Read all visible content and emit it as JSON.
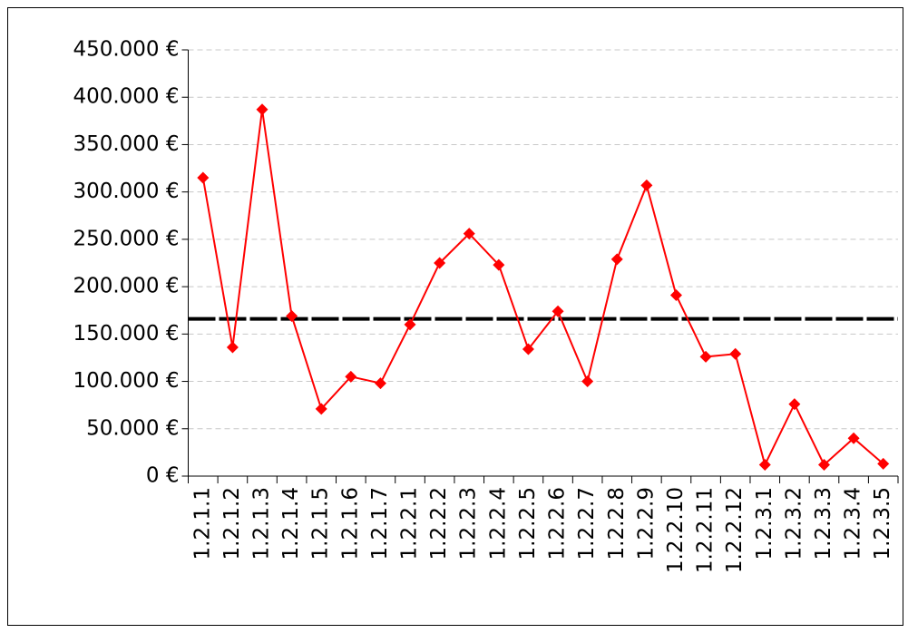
{
  "chart_data": {
    "type": "line",
    "categories": [
      "1.2.1.1",
      "1.2.1.2",
      "1.2.1.3",
      "1.2.1.4",
      "1.2.1.5",
      "1.2.1.6",
      "1.2.1.7",
      "1.2.2.1",
      "1.2.2.2",
      "1.2.2.3",
      "1.2.2.4",
      "1.2.2.5",
      "1.2.2.6",
      "1.2.2.7",
      "1.2.2.8",
      "1.2.2.9",
      "1.2.2.10",
      "1.2.2.11",
      "1.2.2.12",
      "1.2.3.1",
      "1.2.3.2",
      "1.2.3.3",
      "1.2.3.4",
      "1.2.3.5"
    ],
    "series": [
      {
        "color": "#ff0000",
        "values": [
          315000,
          136000,
          387000,
          169000,
          71000,
          105000,
          98000,
          160000,
          225000,
          256000,
          223000,
          134000,
          174000,
          100000,
          229000,
          307000,
          191000,
          126000,
          129000,
          12000,
          76000,
          12000,
          40000,
          13000
        ]
      }
    ],
    "hline": {
      "value": 166000,
      "color": "#000000"
    },
    "ylim": [
      0,
      450000
    ],
    "yticks": [
      {
        "value": 0,
        "label": "0 €"
      },
      {
        "value": 50000,
        "label": "50.000 €"
      },
      {
        "value": 100000,
        "label": "100.000 €"
      },
      {
        "value": 150000,
        "label": "150.000 €"
      },
      {
        "value": 200000,
        "label": "200.000 €"
      },
      {
        "value": 250000,
        "label": "250.000 €"
      },
      {
        "value": 300000,
        "label": "300.000 €"
      },
      {
        "value": 350000,
        "label": "350.000 €"
      },
      {
        "value": 400000,
        "label": "400.000 €"
      },
      {
        "value": 450000,
        "label": "450.000 €"
      }
    ],
    "grid": true
  }
}
